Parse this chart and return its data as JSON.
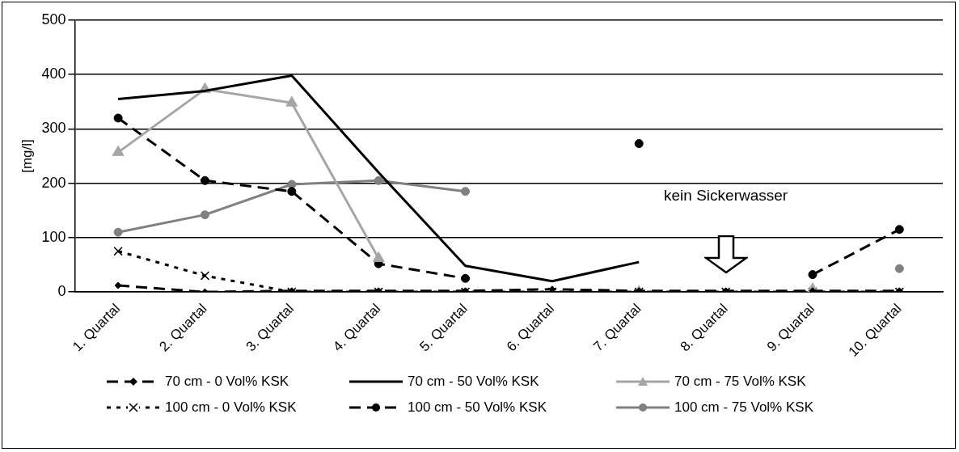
{
  "chart_data": {
    "type": "line",
    "ylabel": "[mg/l]",
    "categories": [
      "1. Quartal",
      "2. Quartal",
      "3. Quartal",
      "4. Quartal",
      "5. Quartal",
      "6. Quartal",
      "7. Quartal",
      "8. Quartal",
      "9. Quartal",
      "10. Quartal"
    ],
    "series": [
      {
        "name": "70 cm - 0 Vol% KSK",
        "color": "#000000",
        "marker": "diamond",
        "line_style": "dashed",
        "values": [
          12,
          0,
          2,
          2,
          2,
          5,
          2,
          2,
          2,
          2
        ]
      },
      {
        "name": "70 cm - 50 Vol% KSK",
        "color": "#000000",
        "marker": "none",
        "line_style": "solid",
        "values": [
          355,
          370,
          398,
          220,
          48,
          20,
          55,
          null,
          null,
          null
        ]
      },
      {
        "name": "70 cm - 75 Vol% KSK",
        "color": "#a6a6a6",
        "marker": "triangle",
        "line_style": "solid",
        "values": [
          257,
          373,
          348,
          62,
          null,
          null,
          0,
          null,
          5,
          null
        ]
      },
      {
        "name": "100 cm - 0 Vol% KSK",
        "color": "#000000",
        "marker": "cross",
        "line_style": "dotted",
        "values": [
          75,
          30,
          0,
          0,
          0,
          0,
          0,
          0,
          0,
          0
        ]
      },
      {
        "name": "100 cm - 50 Vol% KSK",
        "color": "#000000",
        "marker": "circle",
        "line_style": "dashed",
        "values": [
          320,
          205,
          185,
          52,
          25,
          null,
          273,
          null,
          32,
          115
        ]
      },
      {
        "name": "100 cm - 75 Vol% KSK",
        "color": "#808080",
        "marker": "circle",
        "line_style": "solid",
        "values": [
          110,
          142,
          198,
          205,
          185,
          null,
          null,
          null,
          null,
          43
        ]
      }
    ],
    "ylim": [
      0,
      500
    ],
    "yticks": [
      0,
      100,
      200,
      300,
      400,
      500
    ],
    "grid": "y",
    "legend": "bottom",
    "annotations": [
      "kein Sickerwasser"
    ]
  }
}
